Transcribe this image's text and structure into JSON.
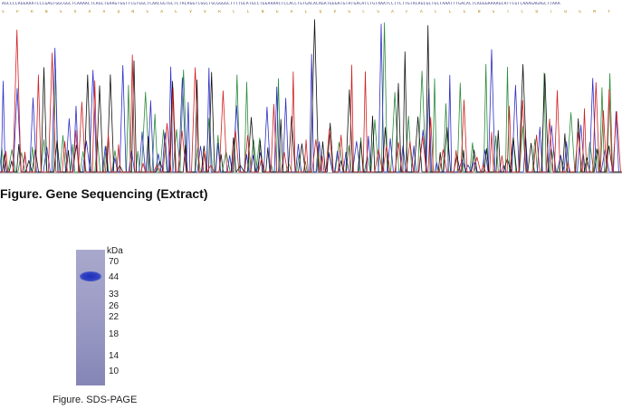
{
  "gene_sequencing": {
    "bases_text": "AGCCCCAGGAAATCCCGAGTGGCGGCTCAAAACTCAGCTGAAGTGGTTCGTGGCTCAACGGTGCTCTACAGGTCGGCTGCGGGGCTTTTGCATGCCTGGAAAACTCCACCTGTGACACAGATGGGATGTATGACATCTGTAAATCCTTCTTGTACAGCGCTGCTAAATTTGACACTCAGGGAAAAGCATTCGTCAAAGAGAGCTTAAA",
    "aa_text": "S P R N S V A A Q N S A E V V R C L N G A L Q V G C S A F A C L E N S T C D T D G M Y D I C K S F L Y S A A K F D T Q G K A F V K E S L K",
    "caption": "Figure. Gene Sequencing (Extract)",
    "trace_colors": {
      "A": "#2a8a3a",
      "C": "#2e2ec8",
      "G": "#111111",
      "T": "#d02020"
    }
  },
  "sds_page": {
    "unit_label": "kDa",
    "markers": [
      "70",
      "44",
      "33",
      "26",
      "22",
      "18",
      "14",
      "10"
    ],
    "caption": "Figure. SDS-PAGE",
    "band_color": "#1e2fb8",
    "lane_color": "#9f9fc8"
  }
}
